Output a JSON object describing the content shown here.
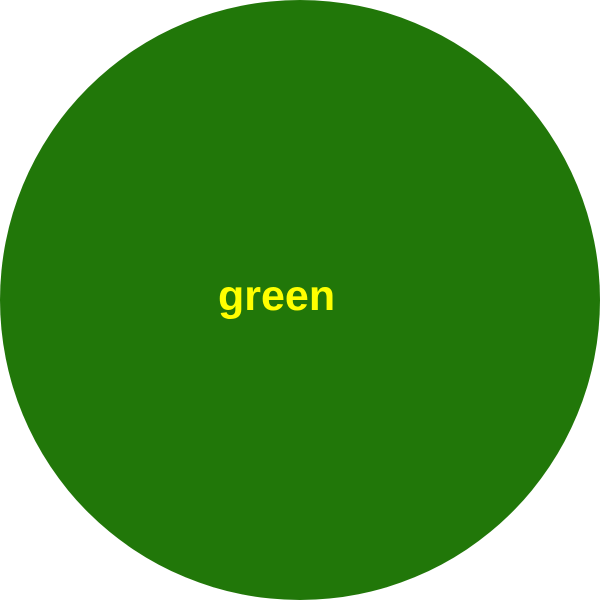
{
  "shape": {
    "type": "circle",
    "fill_color": "#217709"
  },
  "label": {
    "text": "green",
    "color": "#ffff00"
  },
  "background_color": "#ffffff"
}
